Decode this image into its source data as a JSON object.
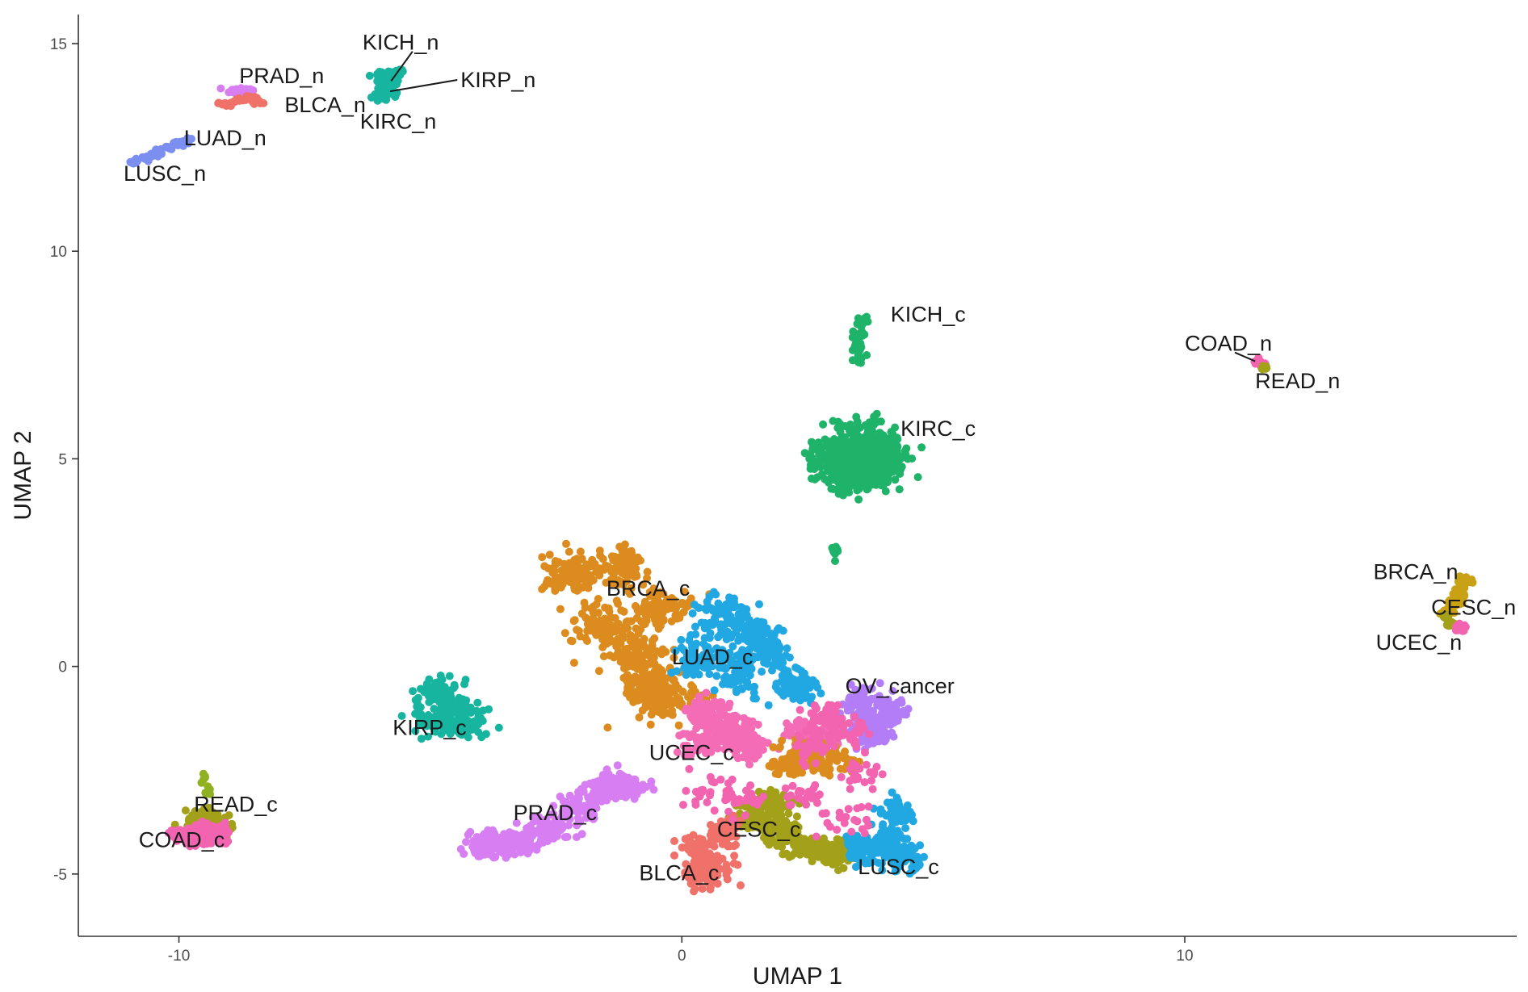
{
  "chart_data": {
    "type": "scatter",
    "title": "",
    "xlabel": "UMAP 1",
    "ylabel": "UMAP 2",
    "xlim": [
      -12.0,
      16.6
    ],
    "ylim": [
      -6.5,
      15.7
    ],
    "x_ticks": [
      -10,
      0,
      10
    ],
    "x_tick_labels": [
      "-10",
      "0",
      "10"
    ],
    "y_ticks": [
      -5,
      0,
      5,
      10,
      15
    ],
    "y_tick_labels": [
      "-5",
      "0",
      "5",
      "10",
      "15"
    ],
    "grid": false,
    "legend": "none",
    "palette": {
      "salmon": "#f0706a",
      "orange": "#dc8c1e",
      "olive": "#a3a01a",
      "gold": "#c9a114",
      "yellowgreen": "#8fb021",
      "green": "#1fb36a",
      "teal": "#17b5a0",
      "blue": "#21a8e3",
      "periwinkle": "#7b8ff0",
      "purple": "#b27df7",
      "lilac": "#d77ef2",
      "pink": "#f263b0",
      "rose": "#f56cb6"
    },
    "clusters": [
      {
        "label": "PRAD_n",
        "label_x": -8.8,
        "label_y": 14.05,
        "points": [
          [
            -8.95,
            13.85
          ],
          [
            -8.75,
            13.9
          ],
          [
            -8.6,
            13.85
          ],
          [
            -8.8,
            13.78
          ]
        ],
        "spread": [
          0.15,
          0.06
        ],
        "count": 40,
        "color": "lilac"
      },
      {
        "label": "BLCA_n",
        "label_x": -7.9,
        "label_y": 13.35,
        "points": [
          [
            -9.05,
            13.55
          ],
          [
            -8.8,
            13.65
          ],
          [
            -8.6,
            13.7
          ],
          [
            -8.45,
            13.6
          ]
        ],
        "spread": [
          0.12,
          0.06
        ],
        "count": 40,
        "color": "salmon"
      },
      {
        "label": "LUAD_n",
        "label_x": -9.9,
        "label_y": 12.55,
        "points": [
          [
            -10.4,
            12.4
          ],
          [
            -10.2,
            12.5
          ],
          [
            -10.0,
            12.6
          ],
          [
            -9.85,
            12.65
          ]
        ],
        "spread": [
          0.08,
          0.06
        ],
        "count": 40,
        "color": "periwinkle"
      },
      {
        "label": "LUSC_n",
        "label_x": -11.1,
        "label_y": 11.7,
        "points": [
          [
            -10.85,
            12.15
          ],
          [
            -10.65,
            12.25
          ],
          [
            -10.5,
            12.32
          ]
        ],
        "spread": [
          0.08,
          0.05
        ],
        "count": 40,
        "color": "periwinkle"
      },
      {
        "label": "KICH_n",
        "label_x": -6.35,
        "label_y": 14.85,
        "line_to": [
          -5.78,
          14.1
        ],
        "points": [
          [
            -5.95,
            14.25
          ],
          [
            -5.7,
            14.3
          ]
        ],
        "spread": [
          0.15,
          0.1
        ],
        "count": 50,
        "color": "teal"
      },
      {
        "label": "KIRP_n",
        "label_x": -4.4,
        "label_y": 13.95,
        "line_to": [
          -5.8,
          13.85
        ],
        "points": [
          [
            -5.9,
            13.95
          ],
          [
            -5.75,
            14.05
          ]
        ],
        "spread": [
          0.12,
          0.08
        ],
        "count": 40,
        "color": "teal"
      },
      {
        "label": "KIRC_n",
        "label_x": -6.4,
        "label_y": 12.95,
        "points": [
          [
            -6.0,
            13.72
          ],
          [
            -5.85,
            13.8
          ]
        ],
        "spread": [
          0.12,
          0.08
        ],
        "count": 40,
        "color": "teal"
      },
      {
        "label": "KICH_c",
        "label_x": 4.15,
        "label_y": 8.3,
        "points": [
          [
            3.6,
            8.3
          ],
          [
            3.55,
            8.0
          ],
          [
            3.5,
            7.7
          ],
          [
            3.55,
            7.4
          ]
        ],
        "spread": [
          0.1,
          0.15
        ],
        "count": 50,
        "color": "green"
      },
      {
        "label": "KIRC_c",
        "label_x": 4.35,
        "label_y": 5.55,
        "points": [
          [
            3.0,
            5.0
          ],
          [
            3.5,
            5.4
          ],
          [
            4.0,
            5.2
          ],
          [
            3.4,
            4.6
          ],
          [
            3.9,
            4.8
          ]
        ],
        "spread": [
          0.45,
          0.45
        ],
        "count": 520,
        "color": "green"
      },
      {
        "label": "",
        "points": [
          [
            3.05,
            2.75
          ]
        ],
        "spread": [
          0.05,
          0.15
        ],
        "count": 15,
        "color": "green"
      },
      {
        "label": "COAD_n",
        "label_x": 10.0,
        "label_y": 7.6,
        "line_to": [
          11.4,
          7.35
        ],
        "points": [
          [
            11.45,
            7.35
          ],
          [
            11.55,
            7.25
          ]
        ],
        "spread": [
          0.07,
          0.05
        ],
        "count": 30,
        "color": "pink"
      },
      {
        "label": "READ_n",
        "label_x": 11.4,
        "label_y": 6.7,
        "points": [
          [
            11.6,
            7.2
          ]
        ],
        "spread": [
          0.05,
          0.04
        ],
        "count": 15,
        "color": "olive"
      },
      {
        "label": "BRCA_n",
        "label_x": 13.75,
        "label_y": 2.1,
        "points": [
          [
            15.55,
            2.05
          ],
          [
            15.45,
            1.8
          ],
          [
            15.35,
            1.55
          ],
          [
            15.2,
            1.3
          ]
        ],
        "spread": [
          0.1,
          0.08
        ],
        "count": 110,
        "color": "gold"
      },
      {
        "label": "CESC_n",
        "label_x": 14.9,
        "label_y": 1.25,
        "points": [
          [
            15.2,
            1.2
          ],
          [
            15.3,
            1.0
          ]
        ],
        "spread": [
          0.08,
          0.06
        ],
        "count": 30,
        "color": "olive"
      },
      {
        "label": "UCEC_n",
        "label_x": 13.8,
        "label_y": 0.4,
        "points": [
          [
            15.5,
            0.95
          ]
        ],
        "spread": [
          0.08,
          0.06
        ],
        "count": 30,
        "color": "pink"
      },
      {
        "label": "BRCA_c",
        "label_x": -1.5,
        "label_y": 1.7,
        "points": [
          [
            -2.2,
            2.2
          ],
          [
            -1.2,
            2.4
          ],
          [
            -0.4,
            1.4
          ],
          [
            -1.6,
            1.0
          ],
          [
            -0.9,
            0.3
          ],
          [
            -0.6,
            -0.5
          ],
          [
            -0.3,
            -0.8
          ]
        ],
        "spread": [
          0.5,
          0.4
        ],
        "count": 640,
        "color": "orange"
      },
      {
        "label": "LUAD_c",
        "label_x": -0.2,
        "label_y": 0.05,
        "points": [
          [
            0.8,
            1.3
          ],
          [
            1.3,
            0.8
          ],
          [
            1.1,
            -0.1
          ],
          [
            1.8,
            0.3
          ],
          [
            2.2,
            -0.5
          ],
          [
            0.3,
            0.2
          ]
        ],
        "spread": [
          0.4,
          0.45
        ],
        "count": 420,
        "color": "blue"
      },
      {
        "label": "OV_cancer",
        "label_x": 3.25,
        "label_y": -0.65,
        "points": [
          [
            3.6,
            -0.9
          ],
          [
            4.1,
            -1.1
          ],
          [
            3.8,
            -1.6
          ]
        ],
        "spread": [
          0.3,
          0.3
        ],
        "count": 220,
        "color": "purple"
      },
      {
        "label": "KIRP_c",
        "label_x": -5.75,
        "label_y": -1.65,
        "points": [
          [
            -4.8,
            -0.6
          ],
          [
            -4.5,
            -1.0
          ],
          [
            -4.9,
            -1.3
          ],
          [
            -4.3,
            -1.4
          ]
        ],
        "spread": [
          0.35,
          0.3
        ],
        "count": 250,
        "color": "teal"
      },
      {
        "label": "UCEC_c",
        "label_x": -0.65,
        "label_y": -2.25,
        "points": [
          [
            0.5,
            -1.1
          ],
          [
            1.0,
            -1.5
          ],
          [
            0.4,
            -1.8
          ],
          [
            1.3,
            -1.9
          ],
          [
            2.6,
            -1.6
          ]
        ],
        "spread": [
          0.4,
          0.3
        ],
        "count": 360,
        "color": "rose"
      },
      {
        "label": "",
        "points": [
          [
            2.4,
            -2.0
          ],
          [
            3.0,
            -2.3
          ],
          [
            2.1,
            -2.4
          ]
        ],
        "spread": [
          0.35,
          0.25
        ],
        "count": 150,
        "color": "orange"
      },
      {
        "label": "",
        "points": [
          [
            2.8,
            -1.2
          ],
          [
            3.3,
            -1.5
          ],
          [
            2.6,
            -1.9
          ]
        ],
        "spread": [
          0.3,
          0.3
        ],
        "count": 120,
        "color": "pink"
      },
      {
        "label": "READ_c",
        "label_x": -9.7,
        "label_y": -3.5,
        "points": [
          [
            -9.55,
            -3.7
          ],
          [
            -9.2,
            -3.9
          ]
        ],
        "spread": [
          0.3,
          0.2
        ],
        "count": 120,
        "color": "olive"
      },
      {
        "label": "COAD_c",
        "label_x": -10.8,
        "label_y": -4.35,
        "points": [
          [
            -9.7,
            -4.1
          ],
          [
            -9.3,
            -4.0
          ]
        ],
        "spread": [
          0.3,
          0.18
        ],
        "count": 160,
        "color": "pink"
      },
      {
        "label": "",
        "points": [
          [
            -9.5,
            -2.7
          ],
          [
            -9.45,
            -3.05
          ]
        ],
        "spread": [
          0.05,
          0.12
        ],
        "count": 10,
        "color": "yellowgreen"
      },
      {
        "label": "PRAD_c",
        "label_x": -3.35,
        "label_y": -3.7,
        "points": [
          [
            -3.9,
            -4.3
          ],
          [
            -3.2,
            -4.2
          ],
          [
            -2.6,
            -3.9
          ],
          [
            -2.1,
            -3.4
          ],
          [
            -1.5,
            -3.0
          ],
          [
            -1.1,
            -2.8
          ]
        ],
        "spread": [
          0.4,
          0.25
        ],
        "count": 420,
        "color": "lilac"
      },
      {
        "label": "CESC_c",
        "label_x": 0.7,
        "label_y": -4.1,
        "points": [
          [
            1.4,
            -3.7
          ],
          [
            2.0,
            -4.0
          ],
          [
            2.6,
            -4.4
          ],
          [
            3.1,
            -4.5
          ],
          [
            1.8,
            -3.3
          ]
        ],
        "spread": [
          0.35,
          0.25
        ],
        "count": 380,
        "color": "olive"
      },
      {
        "label": "LUSC_c",
        "label_x": 3.5,
        "label_y": -5.0,
        "points": [
          [
            4.0,
            -4.2
          ],
          [
            4.3,
            -3.6
          ],
          [
            3.6,
            -4.4
          ],
          [
            4.4,
            -4.6
          ]
        ],
        "spread": [
          0.3,
          0.3
        ],
        "count": 260,
        "color": "blue"
      },
      {
        "label": "BLCA_c",
        "label_x": -0.85,
        "label_y": -5.15,
        "points": [
          [
            0.3,
            -4.4
          ],
          [
            0.6,
            -4.8
          ],
          [
            0.9,
            -4.0
          ],
          [
            0.4,
            -5.0
          ]
        ],
        "spread": [
          0.3,
          0.3
        ],
        "count": 220,
        "color": "salmon"
      },
      {
        "label": "",
        "points": [
          [
            0.6,
            -3.0
          ],
          [
            1.2,
            -3.2
          ],
          [
            2.4,
            -3.1
          ],
          [
            3.3,
            -3.6
          ],
          [
            3.6,
            -2.7
          ]
        ],
        "spread": [
          0.4,
          0.35
        ],
        "count": 120,
        "color": "pink"
      }
    ]
  }
}
